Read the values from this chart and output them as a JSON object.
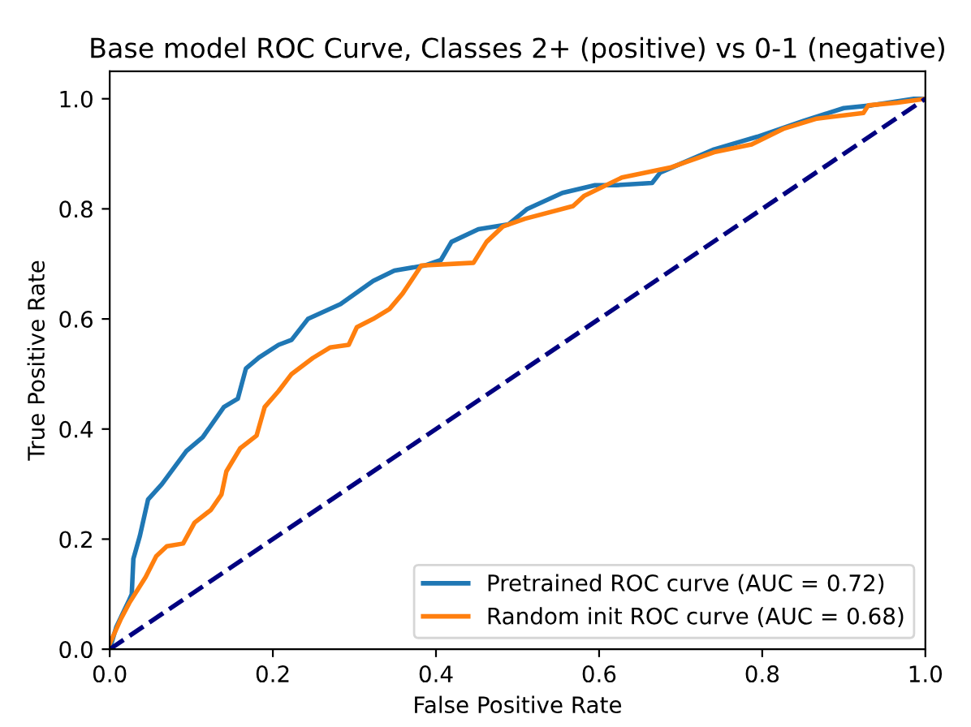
{
  "chart_data": {
    "type": "line",
    "title": "Base model ROC Curve, Classes 2+ (positive) vs 0-1 (negative)",
    "xlabel": "False Positive Rate",
    "ylabel": "True Positive Rate",
    "xlim": [
      0,
      1
    ],
    "ylim": [
      0,
      1.05
    ],
    "xticks": [
      {
        "value": 0,
        "label": "0.0"
      },
      {
        "value": 0.2,
        "label": "0.2"
      },
      {
        "value": 0.4,
        "label": "0.4"
      },
      {
        "value": 0.6,
        "label": "0.6"
      },
      {
        "value": 0.8,
        "label": "0.8"
      },
      {
        "value": 1,
        "label": "1.0"
      }
    ],
    "yticks": [
      {
        "value": 0,
        "label": "0.0"
      },
      {
        "value": 0.2,
        "label": "0.2"
      },
      {
        "value": 0.4,
        "label": "0.4"
      },
      {
        "value": 0.6,
        "label": "0.6"
      },
      {
        "value": 0.8,
        "label": "0.8"
      },
      {
        "value": 1,
        "label": "1.0"
      }
    ],
    "grid": false,
    "legend": "bottom right",
    "marker": "none",
    "series": [
      {
        "name": "Pretrained ROC curve (AUC = 0.72)",
        "color": "#1f77b4",
        "line_style": "solid",
        "x": [
          0,
          0.008,
          0.016,
          0.024,
          0.027,
          0.029,
          0.037,
          0.047,
          0.064,
          0.08,
          0.094,
          0.114,
          0.14,
          0.157,
          0.167,
          0.183,
          0.207,
          0.223,
          0.243,
          0.283,
          0.323,
          0.349,
          0.386,
          0.406,
          0.419,
          0.452,
          0.489,
          0.512,
          0.555,
          0.595,
          0.621,
          0.665,
          0.675,
          0.741,
          0.794,
          0.851,
          0.9,
          0.934,
          0.986,
          1
        ],
        "values": [
          0,
          0.04,
          0.065,
          0.09,
          0.1,
          0.164,
          0.206,
          0.272,
          0.3,
          0.332,
          0.36,
          0.385,
          0.44,
          0.455,
          0.51,
          0.53,
          0.553,
          0.562,
          0.6,
          0.627,
          0.669,
          0.688,
          0.697,
          0.707,
          0.74,
          0.763,
          0.772,
          0.8,
          0.829,
          0.843,
          0.843,
          0.847,
          0.866,
          0.908,
          0.931,
          0.96,
          0.983,
          0.988,
          1.0,
          1.0
        ]
      },
      {
        "name": "Random init ROC curve (AUC = 0.68)",
        "color": "#ff7f0e",
        "line_style": "solid",
        "x": [
          0,
          0.014,
          0.024,
          0.044,
          0.057,
          0.07,
          0.09,
          0.104,
          0.124,
          0.137,
          0.143,
          0.16,
          0.18,
          0.19,
          0.207,
          0.223,
          0.249,
          0.27,
          0.293,
          0.303,
          0.323,
          0.343,
          0.359,
          0.382,
          0.446,
          0.462,
          0.482,
          0.509,
          0.568,
          0.582,
          0.628,
          0.687,
          0.741,
          0.787,
          0.827,
          0.867,
          0.924,
          0.93,
          0.966,
          1
        ],
        "values": [
          0.01,
          0.056,
          0.084,
          0.131,
          0.169,
          0.187,
          0.192,
          0.23,
          0.253,
          0.281,
          0.323,
          0.365,
          0.388,
          0.44,
          0.469,
          0.5,
          0.529,
          0.548,
          0.553,
          0.585,
          0.6,
          0.618,
          0.646,
          0.697,
          0.702,
          0.74,
          0.768,
          0.782,
          0.805,
          0.824,
          0.857,
          0.875,
          0.903,
          0.917,
          0.946,
          0.964,
          0.974,
          0.988,
          0.993,
          1.0
        ]
      },
      {
        "color": "#000080",
        "line_style": "dashed",
        "x": [
          0,
          1
        ],
        "values": [
          0,
          1
        ]
      }
    ]
  }
}
